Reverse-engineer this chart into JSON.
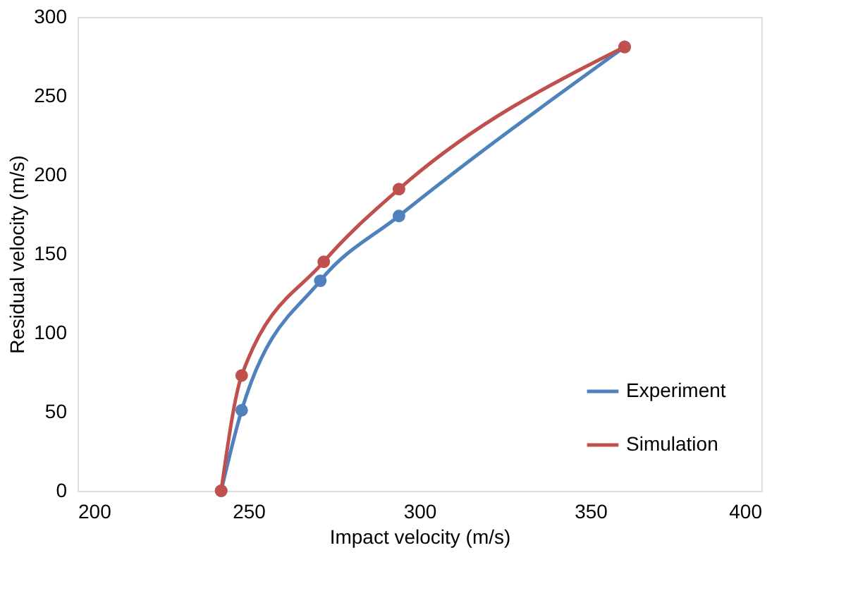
{
  "chart_data": {
    "type": "line",
    "xlabel": "Impact velocity   (m/s)",
    "ylabel": "Residual velocity (m/s)",
    "xlim": [
      200,
      400
    ],
    "xticks": [
      200,
      250,
      300,
      350,
      400
    ],
    "ylim": [
      0,
      300
    ],
    "yticks": [
      0,
      50,
      100,
      150,
      200,
      250,
      300
    ],
    "grid": false,
    "legend": "bottom right",
    "marker": "circle",
    "line_style": "solid",
    "series": [
      {
        "name": "Experiment",
        "color": "#4f81bd",
        "x": [
          242,
          248,
          271,
          294,
          360
        ],
        "values": [
          0,
          51,
          133,
          174,
          281
        ]
      },
      {
        "name": "Simulation",
        "color": "#c0504d",
        "x": [
          242,
          248,
          272,
          294,
          360
        ],
        "values": [
          0,
          73,
          145,
          191,
          281
        ]
      }
    ]
  }
}
